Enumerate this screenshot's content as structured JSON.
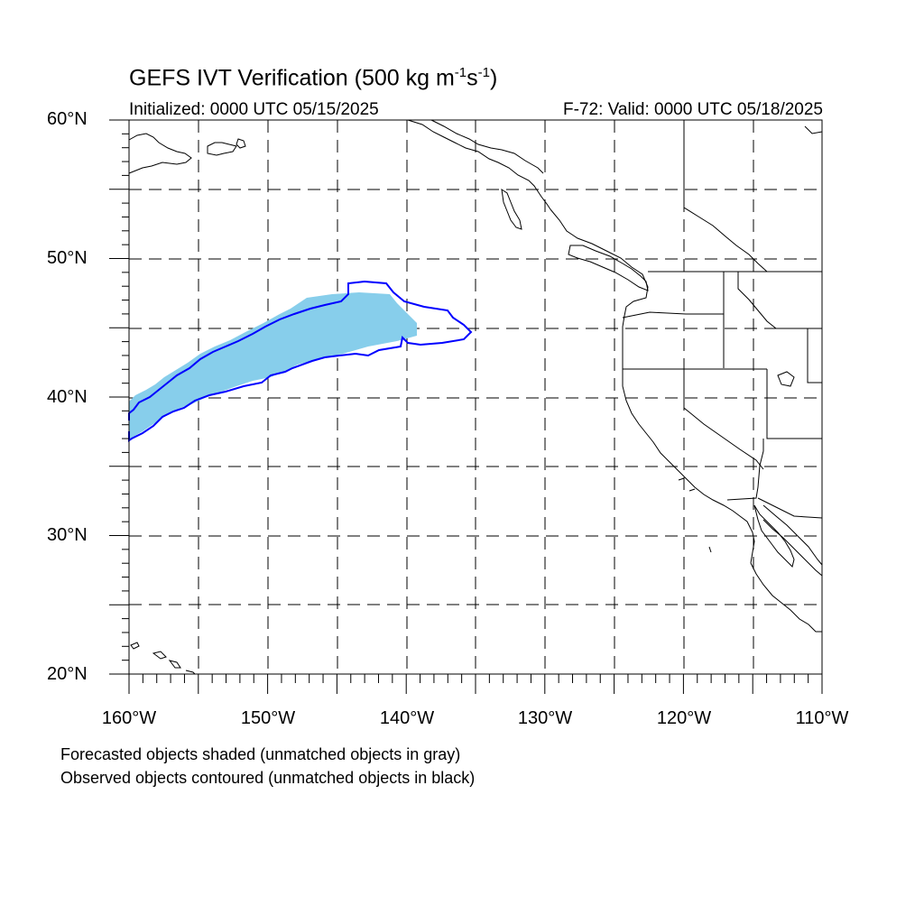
{
  "title": {
    "main": "GEFS IVT Verification (500 kg m",
    "exp1": "-1",
    "mid": "s",
    "exp2": "-1",
    "end": ")"
  },
  "subtitle_left": "Initialized: 0000 UTC 05/15/2025",
  "subtitle_right": "F-72: Valid: 0000 UTC 05/18/2025",
  "lat_labels": [
    "60°N",
    "50°N",
    "40°N",
    "30°N",
    "20°N"
  ],
  "lon_labels": [
    "160°W",
    "150°W",
    "140°W",
    "130°W",
    "120°W",
    "110°W"
  ],
  "footnotes": [
    "Forecasted objects shaded (unmatched objects in gray)",
    "Observed objects contoured (unmatched objects in black)"
  ],
  "colors": {
    "forecast_fill": "#87ceeb",
    "observed_contour": "#0000ff",
    "coastline": "#000000",
    "grid": "#000000"
  }
}
